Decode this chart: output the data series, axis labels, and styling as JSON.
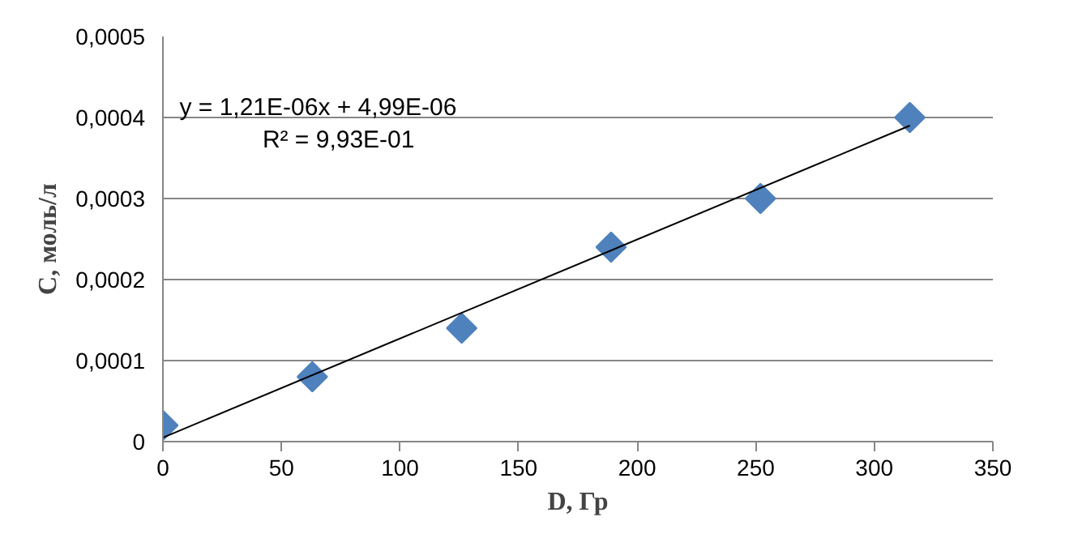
{
  "chart_data": {
    "type": "scatter",
    "xlabel": "D, Гр",
    "ylabel": "C, моль/л",
    "xlim": [
      0,
      350
    ],
    "xticks": [
      0,
      50,
      100,
      150,
      200,
      250,
      300,
      350
    ],
    "ylim": [
      0,
      0.0005
    ],
    "yticks": [
      0,
      {
        "value": 0.0001,
        "label": "0,0001"
      },
      {
        "value": 0.0002,
        "label": "0,0002"
      },
      {
        "value": 0.0003,
        "label": "0,0003"
      },
      {
        "value": 0.0004,
        "label": "0,0004"
      },
      {
        "value": 0.0005,
        "label": "0,0005"
      }
    ],
    "grid": "y",
    "marker": "diamond",
    "x": [
      0,
      63,
      126,
      189,
      252,
      315
    ],
    "series": [
      {
        "color": "#4f81bd",
        "values": [
          2e-05,
          8e-05,
          0.00014,
          0.00024,
          0.0003,
          0.0004
        ]
      },
      {
        "type": "line",
        "color": "#000000",
        "x": [
          0,
          315
        ],
        "values": [
          5e-06,
          0.00039
        ],
        "marker": "none",
        "line_style": "solid"
      }
    ],
    "annotations": [
      "y = 1,21E-06x + 4,99E-06",
      "R² = 9,93E-01"
    ]
  }
}
